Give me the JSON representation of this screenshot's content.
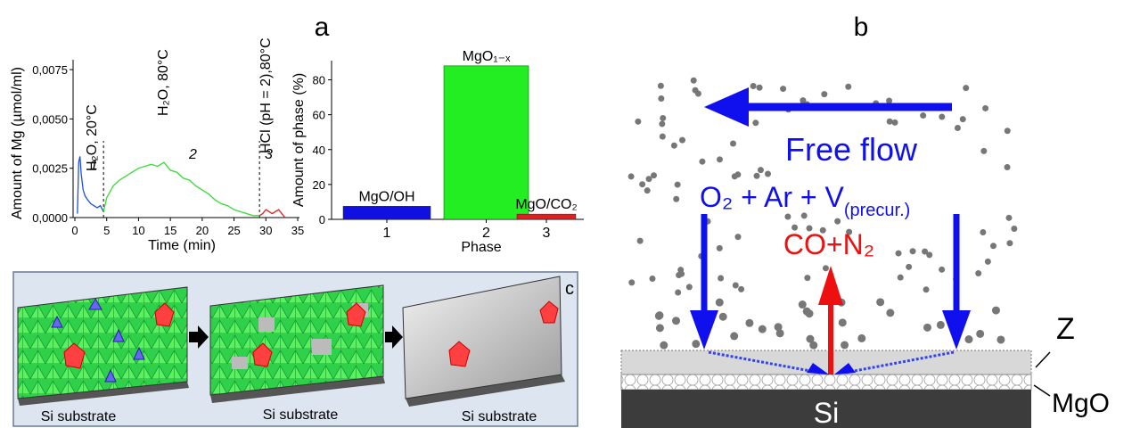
{
  "panel_labels": [
    "a",
    "b",
    "c"
  ],
  "chart_data": [
    {
      "type": "line",
      "x_label": "Time (min)",
      "y_label": "Amount of Mg (µmol/ml)",
      "xlim": [
        0,
        35
      ],
      "xticks": [
        0,
        5,
        10,
        15,
        20,
        25,
        30,
        35
      ],
      "ylim": [
        0,
        0.008
      ],
      "yticks": [
        {
          "value": 0,
          "label": "0,0000"
        },
        {
          "value": 0.0025,
          "label": "0,0025"
        },
        {
          "value": 0.005,
          "label": "0,0050"
        },
        {
          "value": 0.0075,
          "label": "0,0075"
        }
      ],
      "phase_boundaries": [
        4.5,
        29
      ],
      "annotations": [
        "H₂O, 20°C",
        "H₂O, 80°C",
        "HCl (pH = 2),80°C"
      ],
      "phase_numbers": [
        "1",
        "2",
        "3"
      ],
      "series": [
        {
          "color": "#1f4fe0",
          "x": [
            0.4,
            0.6,
            0.8,
            1.0,
            1.3,
            1.6,
            2,
            2.5,
            3,
            3.5,
            4,
            4.5
          ],
          "values": [
            0.0002,
            0.0028,
            0.0031,
            0.0022,
            0.0014,
            0.0011,
            0.0009,
            0.0007,
            0.0006,
            0.0005,
            0.0006,
            0.0003
          ]
        },
        {
          "color": "#33dd33",
          "x": [
            4.5,
            5,
            6,
            7,
            8,
            9,
            10,
            11,
            12,
            13,
            14,
            15,
            16,
            17,
            18,
            19,
            20,
            21,
            22,
            23,
            24,
            25,
            26,
            27,
            28,
            29
          ],
          "values": [
            0.0003,
            0.001,
            0.0016,
            0.0019,
            0.0021,
            0.0023,
            0.0025,
            0.0026,
            0.0027,
            0.0026,
            0.0028,
            0.0024,
            0.0023,
            0.002,
            0.0019,
            0.0016,
            0.0014,
            0.0012,
            0.0009,
            0.0007,
            0.0006,
            0.0004,
            0.0003,
            0.0002,
            0.0001,
            0.0001
          ]
        },
        {
          "color": "#e02020",
          "x": [
            29,
            29.5,
            30,
            30.5,
            31,
            31.5,
            32,
            32.5,
            33
          ],
          "values": [
            0.0001,
            0.0002,
            0.0004,
            0.0003,
            0.0002,
            0.0003,
            0.0004,
            0.0002,
            0
          ]
        }
      ]
    },
    {
      "type": "bar",
      "x_label": "Phase",
      "y_label": "Amount of phase (%)",
      "categories": [
        "1",
        "2",
        "3"
      ],
      "bar_labels": [
        "MgO/OH",
        "MgO₁₋ₓ",
        "MgO/CO₂"
      ],
      "values": [
        7.5,
        88,
        3
      ],
      "colors": [
        "#1010e0",
        "#22ee22",
        "#e02020"
      ],
      "ylim": [
        0,
        91
      ],
      "yticks": [
        0,
        20,
        40,
        60,
        80
      ]
    }
  ],
  "diagram_b": {
    "flow_label": "Free flow",
    "gas_label": "O₂ + Ar + V",
    "gas_subscript": "(precur.)",
    "product_label": "CO+N₂",
    "substrate": "Si",
    "layer_z": "Z",
    "layer_mgo": "MgO"
  },
  "diagram_c": {
    "substrate_labels": [
      "Si substrate",
      "Si substrate",
      "Si substrate"
    ]
  }
}
